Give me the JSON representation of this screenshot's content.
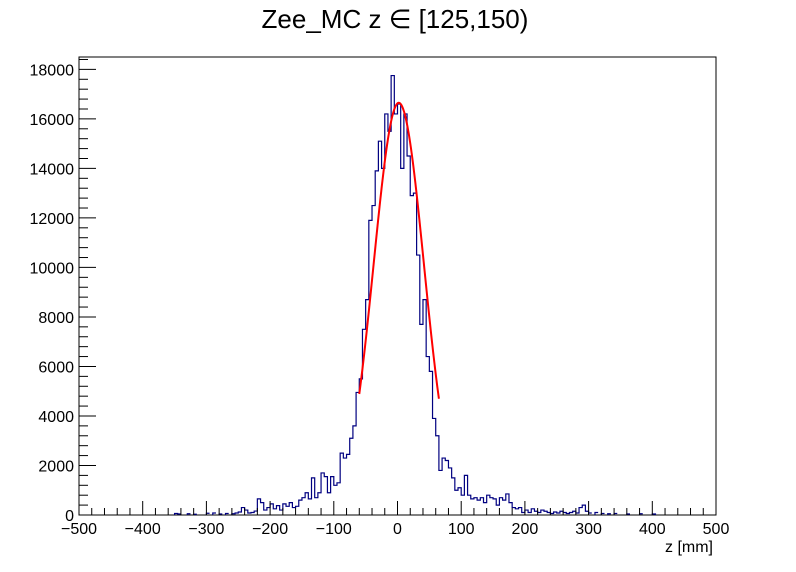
{
  "chart_data": {
    "type": "histogram",
    "title": "Zee_MC z ∈ [125,150)",
    "xlabel": "z [mm]",
    "ylabel": "",
    "xlim": [
      -500,
      500
    ],
    "ylim": [
      0,
      18500
    ],
    "bin_width": 5,
    "x_ticks": [
      "−500",
      "−400",
      "−300",
      "−200",
      "−100",
      "0",
      "100",
      "200",
      "300",
      "400",
      "500"
    ],
    "y_ticks": [
      "0",
      "2000",
      "4000",
      "6000",
      "8000",
      "10000",
      "12000",
      "14000",
      "16000",
      "18000"
    ],
    "grid": false,
    "legend": "none",
    "histogram_color": "#000080",
    "fit_color": "#ff0000",
    "bins": [
      {
        "x": -350,
        "y": 60
      },
      {
        "x": -345,
        "y": 40
      },
      {
        "x": -330,
        "y": 50
      },
      {
        "x": -320,
        "y": 30
      },
      {
        "x": -300,
        "y": 70
      },
      {
        "x": -290,
        "y": 80
      },
      {
        "x": -280,
        "y": 40
      },
      {
        "x": -270,
        "y": 60
      },
      {
        "x": -260,
        "y": 50
      },
      {
        "x": -255,
        "y": 80
      },
      {
        "x": -250,
        "y": 120
      },
      {
        "x": -245,
        "y": 300
      },
      {
        "x": -240,
        "y": 200
      },
      {
        "x": -235,
        "y": 80
      },
      {
        "x": -230,
        "y": 100
      },
      {
        "x": -225,
        "y": 160
      },
      {
        "x": -220,
        "y": 650
      },
      {
        "x": -215,
        "y": 500
      },
      {
        "x": -210,
        "y": 200
      },
      {
        "x": -205,
        "y": 300
      },
      {
        "x": -200,
        "y": 450
      },
      {
        "x": -195,
        "y": 250
      },
      {
        "x": -190,
        "y": 380
      },
      {
        "x": -185,
        "y": 200
      },
      {
        "x": -180,
        "y": 450
      },
      {
        "x": -175,
        "y": 350
      },
      {
        "x": -170,
        "y": 500
      },
      {
        "x": -165,
        "y": 300
      },
      {
        "x": -160,
        "y": 350
      },
      {
        "x": -155,
        "y": 600
      },
      {
        "x": -150,
        "y": 700
      },
      {
        "x": -145,
        "y": 900
      },
      {
        "x": -140,
        "y": 650
      },
      {
        "x": -135,
        "y": 1500
      },
      {
        "x": -130,
        "y": 700
      },
      {
        "x": -125,
        "y": 900
      },
      {
        "x": -120,
        "y": 1700
      },
      {
        "x": -115,
        "y": 1550
      },
      {
        "x": -110,
        "y": 900
      },
      {
        "x": -105,
        "y": 1550
      },
      {
        "x": -100,
        "y": 1200
      },
      {
        "x": -95,
        "y": 1300
      },
      {
        "x": -90,
        "y": 2500
      },
      {
        "x": -85,
        "y": 2300
      },
      {
        "x": -80,
        "y": 2450
      },
      {
        "x": -75,
        "y": 3100
      },
      {
        "x": -70,
        "y": 3600
      },
      {
        "x": -65,
        "y": 4950
      },
      {
        "x": -60,
        "y": 5500
      },
      {
        "x": -55,
        "y": 7500
      },
      {
        "x": -50,
        "y": 8700
      },
      {
        "x": -45,
        "y": 11900
      },
      {
        "x": -40,
        "y": 12500
      },
      {
        "x": -35,
        "y": 13900
      },
      {
        "x": -30,
        "y": 15100
      },
      {
        "x": -25,
        "y": 14000
      },
      {
        "x": -20,
        "y": 16200
      },
      {
        "x": -15,
        "y": 15500
      },
      {
        "x": -10,
        "y": 17750
      },
      {
        "x": -5,
        "y": 16200
      },
      {
        "x": 0,
        "y": 16600
      },
      {
        "x": 5,
        "y": 14000
      },
      {
        "x": 10,
        "y": 16200
      },
      {
        "x": 15,
        "y": 14500
      },
      {
        "x": 20,
        "y": 12900
      },
      {
        "x": 25,
        "y": 13000
      },
      {
        "x": 30,
        "y": 10500
      },
      {
        "x": 35,
        "y": 7700
      },
      {
        "x": 40,
        "y": 8700
      },
      {
        "x": 45,
        "y": 6400
      },
      {
        "x": 50,
        "y": 5800
      },
      {
        "x": 55,
        "y": 3900
      },
      {
        "x": 60,
        "y": 3200
      },
      {
        "x": 65,
        "y": 1800
      },
      {
        "x": 70,
        "y": 2300
      },
      {
        "x": 75,
        "y": 2200
      },
      {
        "x": 80,
        "y": 1900
      },
      {
        "x": 85,
        "y": 1500
      },
      {
        "x": 90,
        "y": 1000
      },
      {
        "x": 95,
        "y": 1100
      },
      {
        "x": 100,
        "y": 800
      },
      {
        "x": 105,
        "y": 1600
      },
      {
        "x": 110,
        "y": 800
      },
      {
        "x": 115,
        "y": 650
      },
      {
        "x": 120,
        "y": 700
      },
      {
        "x": 125,
        "y": 600
      },
      {
        "x": 130,
        "y": 700
      },
      {
        "x": 135,
        "y": 500
      },
      {
        "x": 140,
        "y": 800
      },
      {
        "x": 145,
        "y": 700
      },
      {
        "x": 150,
        "y": 650
      },
      {
        "x": 155,
        "y": 400
      },
      {
        "x": 160,
        "y": 700
      },
      {
        "x": 165,
        "y": 600
      },
      {
        "x": 170,
        "y": 850
      },
      {
        "x": 175,
        "y": 500
      },
      {
        "x": 180,
        "y": 300
      },
      {
        "x": 185,
        "y": 250
      },
      {
        "x": 190,
        "y": 300
      },
      {
        "x": 195,
        "y": 100
      },
      {
        "x": 200,
        "y": 200
      },
      {
        "x": 205,
        "y": 100
      },
      {
        "x": 210,
        "y": 250
      },
      {
        "x": 215,
        "y": 150
      },
      {
        "x": 220,
        "y": 100
      },
      {
        "x": 225,
        "y": 200
      },
      {
        "x": 230,
        "y": 150
      },
      {
        "x": 235,
        "y": 100
      },
      {
        "x": 240,
        "y": 60
      },
      {
        "x": 245,
        "y": 120
      },
      {
        "x": 250,
        "y": 80
      },
      {
        "x": 255,
        "y": 150
      },
      {
        "x": 260,
        "y": 100
      },
      {
        "x": 265,
        "y": 60
      },
      {
        "x": 270,
        "y": 100
      },
      {
        "x": 275,
        "y": 150
      },
      {
        "x": 280,
        "y": 80
      },
      {
        "x": 285,
        "y": 300
      },
      {
        "x": 290,
        "y": 400
      },
      {
        "x": 295,
        "y": 150
      },
      {
        "x": 300,
        "y": 80
      },
      {
        "x": 310,
        "y": 100
      },
      {
        "x": 320,
        "y": 60
      },
      {
        "x": 330,
        "y": 50
      },
      {
        "x": 340,
        "y": 60
      },
      {
        "x": 360,
        "y": 40
      },
      {
        "x": 380,
        "y": 50
      },
      {
        "x": 400,
        "y": 40
      }
    ],
    "fit": {
      "function": "gaussian",
      "x_range": [
        -60,
        65
      ],
      "amplitude": 16650,
      "mean": 2,
      "sigma": 39.6
    }
  }
}
